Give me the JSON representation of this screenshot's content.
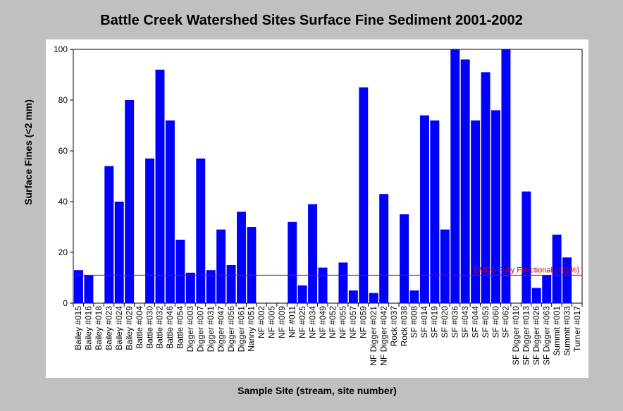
{
  "chart_data": {
    "type": "bar",
    "title": "Battle Creek Watershed Sites Surface Fine Sediment 2001-2002",
    "xlabel": "Sample Site (stream, site number)",
    "ylabel": "Surface Fines (<2 mm)",
    "ylim": [
      0,
      100
    ],
    "yticks": [
      "0",
      "20",
      "40",
      "60",
      "80",
      "100"
    ],
    "grid": false,
    "bar_color": "#0000ff",
    "reference_line": {
      "value": 11,
      "label": "EMDS Fully Functional (<11%)",
      "color": "#cc0000"
    },
    "categories": [
      "Bailey #015",
      "Bailey #016",
      "Bailey #018",
      "Bailey #023",
      "Bailey #024",
      "Bailey #029",
      "Battle #004",
      "Battle #030",
      "Battle #032",
      "Battle #046",
      "Battle #054",
      "Digger #003",
      "Digger #007",
      "Digger #031",
      "Digger #047",
      "Digger #056",
      "Digger #061",
      "Nanny #051",
      "NF #002",
      "NF #005",
      "NF #009",
      "NF #011",
      "NF #025",
      "NF #034",
      "NF #049",
      "NF #052",
      "NF #055",
      "NF #057",
      "NF #059",
      "NF Digger #021",
      "NF Digger #042",
      "Rock #037",
      "Rock #038",
      "SF #008",
      "SF #014",
      "SF #019",
      "SF #020",
      "SF #036",
      "SF #043",
      "SF #044",
      "SF #053",
      "SF #060",
      "SF #062",
      "SF Digger #010",
      "SF Digger #013",
      "SF Digger #026",
      "SF Digger #063",
      "Summit #001",
      "Summit #033",
      "Turner #017"
    ],
    "values": [
      13,
      11,
      0,
      54,
      40,
      80,
      0,
      57,
      92,
      72,
      25,
      12,
      57,
      13,
      29,
      15,
      36,
      30,
      0,
      0,
      0,
      32,
      7,
      39,
      14,
      0,
      16,
      5,
      85,
      4,
      43,
      0,
      35,
      5,
      74,
      72,
      29,
      100,
      96,
      72,
      91,
      76,
      100,
      0,
      44,
      6,
      11,
      27,
      18,
      0
    ]
  }
}
